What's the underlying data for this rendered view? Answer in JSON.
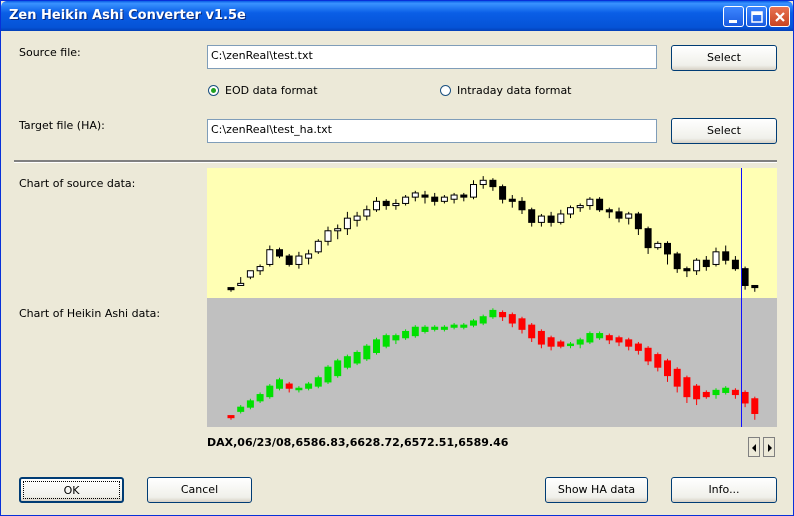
{
  "window": {
    "title": "Zen Heikin Ashi Converter v1.5e"
  },
  "source": {
    "label": "Source file:",
    "value": "C:\\zenReal\\test.txt",
    "select_label": "Select"
  },
  "format": {
    "eod_label": "EOD data format",
    "intraday_label": "Intraday data format",
    "selected": "EOD data format"
  },
  "target": {
    "label": "Target file (HA):",
    "value": "C:\\zenReal\\test_ha.txt",
    "select_label": "Select"
  },
  "charts": {
    "source_label": "Chart of source data:",
    "ha_label": "Chart of Heikin Ashi data:",
    "source_bg": "#ffffb4",
    "ha_bg": "#c0c0c0",
    "cursor_color": "#1010ff",
    "up_color": "#00e000",
    "down_color": "#ff0000",
    "source_series": [
      [
        4,
        3,
        2,
        3
      ],
      [
        5,
        6,
        5,
        9
      ],
      [
        9,
        12,
        8,
        12
      ],
      [
        12,
        14,
        10,
        15
      ],
      [
        15,
        22,
        14,
        24
      ],
      [
        22,
        19,
        18,
        23
      ],
      [
        19,
        15,
        14,
        20
      ],
      [
        15,
        19,
        13,
        21
      ],
      [
        18,
        20,
        15,
        22
      ],
      [
        21,
        26,
        20,
        27
      ],
      [
        26,
        31,
        24,
        33
      ],
      [
        31,
        32,
        27,
        34
      ],
      [
        32,
        37,
        29,
        40
      ],
      [
        36,
        38,
        33,
        40
      ],
      [
        38,
        41,
        36,
        43
      ],
      [
        41,
        45,
        40,
        47
      ],
      [
        45,
        43,
        41,
        46
      ],
      [
        43,
        44,
        41,
        46
      ],
      [
        44,
        47,
        43,
        48
      ],
      [
        47,
        49,
        45,
        50
      ],
      [
        48,
        47,
        44,
        50
      ],
      [
        47,
        45,
        43,
        49
      ],
      [
        45,
        47,
        44,
        48
      ],
      [
        46,
        48,
        44,
        49
      ],
      [
        48,
        47,
        45,
        49
      ],
      [
        47,
        53,
        46,
        55
      ],
      [
        53,
        55,
        51,
        57
      ],
      [
        55,
        52,
        50,
        56
      ],
      [
        52,
        46,
        44,
        53
      ],
      [
        46,
        45,
        42,
        48
      ],
      [
        45,
        41,
        39,
        47
      ],
      [
        41,
        35,
        33,
        42
      ],
      [
        35,
        38,
        33,
        39
      ],
      [
        38,
        35,
        33,
        40
      ],
      [
        35,
        39,
        34,
        41
      ],
      [
        39,
        42,
        37,
        43
      ],
      [
        42,
        43,
        40,
        44
      ],
      [
        43,
        46,
        41,
        47
      ],
      [
        46,
        41,
        40,
        47
      ],
      [
        41,
        40,
        37,
        42
      ],
      [
        40,
        37,
        35,
        42
      ],
      [
        37,
        39,
        34,
        40
      ],
      [
        39,
        32,
        29,
        40
      ],
      [
        32,
        23,
        20,
        33
      ],
      [
        23,
        25,
        22,
        26
      ],
      [
        25,
        20,
        15,
        26
      ],
      [
        20,
        13,
        11,
        21
      ],
      [
        13,
        12,
        9,
        14
      ],
      [
        12,
        17,
        10,
        18
      ],
      [
        17,
        14,
        12,
        19
      ],
      [
        15,
        21,
        14,
        23
      ],
      [
        21,
        17,
        15,
        24
      ],
      [
        17,
        13,
        12,
        19
      ],
      [
        13,
        5,
        3,
        14
      ],
      [
        5,
        4,
        2,
        5
      ]
    ],
    "ha_series": [
      [
        4,
        3,
        2,
        3
      ],
      [
        6,
        8,
        5,
        9
      ],
      [
        8,
        11,
        7,
        12
      ],
      [
        11,
        14,
        10,
        15
      ],
      [
        13,
        18,
        12,
        19
      ],
      [
        17,
        21,
        16,
        22
      ],
      [
        19,
        17,
        15,
        20
      ],
      [
        17,
        17,
        15,
        18
      ],
      [
        17,
        19,
        16,
        20
      ],
      [
        18,
        22,
        17,
        23
      ],
      [
        20,
        27,
        19,
        28
      ],
      [
        23,
        30,
        22,
        31
      ],
      [
        27,
        32,
        26,
        33
      ],
      [
        29,
        34,
        28,
        35
      ],
      [
        31,
        37,
        30,
        38
      ],
      [
        34,
        40,
        33,
        41
      ],
      [
        37,
        42,
        36,
        43
      ],
      [
        40,
        42,
        38,
        43
      ],
      [
        41,
        44,
        40,
        45
      ],
      [
        42,
        46,
        41,
        47
      ],
      [
        44,
        46,
        43,
        47
      ],
      [
        45,
        46,
        44,
        47
      ],
      [
        45,
        46,
        44,
        47
      ],
      [
        46,
        47,
        45,
        48
      ],
      [
        46,
        47,
        45,
        48
      ],
      [
        47,
        49,
        46,
        50
      ],
      [
        48,
        51,
        47,
        52
      ],
      [
        51,
        54,
        50,
        55
      ],
      [
        53,
        51,
        49,
        54
      ],
      [
        52,
        48,
        46,
        53
      ],
      [
        50,
        45,
        43,
        51
      ],
      [
        47,
        41,
        39,
        48
      ],
      [
        44,
        38,
        36,
        45
      ],
      [
        41,
        37,
        35,
        42
      ],
      [
        39,
        37,
        36,
        40
      ],
      [
        38,
        38,
        36,
        39
      ],
      [
        38,
        40,
        36,
        41
      ],
      [
        39,
        43,
        38,
        44
      ],
      [
        41,
        43,
        40,
        44
      ],
      [
        42,
        40,
        38,
        43
      ],
      [
        41,
        39,
        37,
        42
      ],
      [
        40,
        37,
        35,
        41
      ],
      [
        38,
        35,
        33,
        39
      ],
      [
        36,
        30,
        28,
        37
      ],
      [
        33,
        27,
        25,
        34
      ],
      [
        30,
        23,
        20,
        31
      ],
      [
        26,
        18,
        15,
        27
      ],
      [
        22,
        13,
        10,
        23
      ],
      [
        18,
        12,
        9,
        19
      ],
      [
        15,
        13,
        12,
        16
      ],
      [
        14,
        16,
        12,
        17
      ],
      [
        15,
        17,
        14,
        18
      ],
      [
        16,
        14,
        12,
        17
      ],
      [
        15,
        10,
        8,
        16
      ],
      [
        12,
        5,
        2,
        13
      ]
    ]
  },
  "quote": "DAX,06/23/08,6586.83,6628.72,6572.51,6589.46",
  "buttons": {
    "ok": "OK",
    "cancel": "Cancel",
    "show_ha": "Show HA data",
    "info": "Info..."
  }
}
